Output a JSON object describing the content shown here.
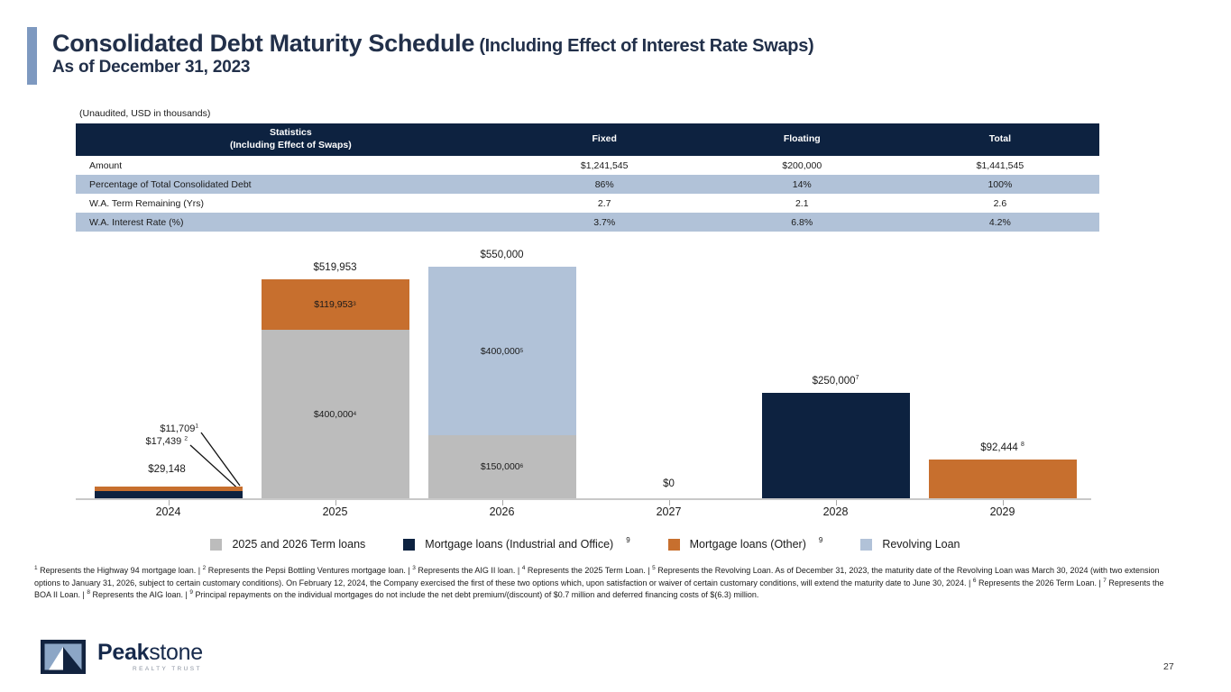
{
  "slide": {
    "title_main": "Consolidated Debt Maturity Schedule",
    "title_paren": " (Including Effect of Interest Rate Swaps)",
    "subtitle": "As of December 31, 2023",
    "unaudited_note": "(Unaudited, USD in thousands)",
    "page_number": "27"
  },
  "colors": {
    "accent_bar": "#7e99c0",
    "title_text": "#22304a",
    "table_header_bg": "#0d2240",
    "table_alt_row_bg": "#b1c2d8",
    "axis_line": "#c9c9c9",
    "series": {
      "term": "#bcbcbc",
      "mortgage_io": "#0d2240",
      "mortgage_other": "#c76f2e",
      "revolving": "#b1c2d8"
    }
  },
  "stats_table": {
    "header": {
      "col1_line1": "Statistics",
      "col1_line2": "(Including Effect of Swaps)",
      "cols": [
        "Fixed",
        "Floating",
        "Total"
      ]
    },
    "rows": [
      {
        "label": "Amount",
        "values": [
          "$1,241,545",
          "$200,000",
          "$1,441,545"
        ],
        "alt": false
      },
      {
        "label": "Percentage of Total Consolidated Debt",
        "values": [
          "86%",
          "14%",
          "100%"
        ],
        "alt": true
      },
      {
        "label": "W.A. Term Remaining (Yrs)",
        "values": [
          "2.7",
          "2.1",
          "2.6"
        ],
        "alt": false
      },
      {
        "label": "W.A. Interest Rate (%)",
        "values": [
          "3.7%",
          "6.8%",
          "4.2%"
        ],
        "alt": true
      }
    ]
  },
  "chart_data": {
    "type": "bar",
    "subtype": "stacked",
    "unit": "USD in thousands",
    "categories": [
      "2024",
      "2025",
      "2026",
      "2027",
      "2028",
      "2029"
    ],
    "ymax": 550000,
    "grid": false,
    "legend_position": "bottom",
    "series_names": {
      "term": "2025 and 2026 Term loans",
      "mortgage_io": "Mortgage loans (Industrial and Office)",
      "mortgage_other": "Mortgage loans (Other)",
      "revolving": "Revolving Loan"
    },
    "bars": [
      {
        "category": "2024",
        "total": 29148,
        "total_label_custom": true,
        "segments": [
          {
            "series": "mortgage_io",
            "value": 17439,
            "label": {
              "text": "$17,439 ",
              "sup": "2"
            },
            "label_mode": "leader"
          },
          {
            "series": "mortgage_other",
            "value": 11709,
            "label": {
              "text": "$11,709",
              "sup": "1"
            },
            "label_mode": "leader"
          }
        ]
      },
      {
        "category": "2025",
        "total": 519953,
        "total_label": {
          "text": "$519,953"
        },
        "segments": [
          {
            "series": "term",
            "value": 400000,
            "label": {
              "text": "$400,000",
              "sup": "4"
            },
            "label_mode": "inside"
          },
          {
            "series": "mortgage_other",
            "value": 119953,
            "label": {
              "text": "$119,953",
              "sup": "3"
            },
            "label_mode": "inside"
          }
        ]
      },
      {
        "category": "2026",
        "total": 550000,
        "total_label": {
          "text": "$550,000"
        },
        "segments": [
          {
            "series": "term",
            "value": 150000,
            "label": {
              "text": "$150,000",
              "sup": "6"
            },
            "label_mode": "inside"
          },
          {
            "series": "revolving",
            "value": 400000,
            "label": {
              "text": "$400,000",
              "sup": "5"
            },
            "label_mode": "inside"
          }
        ]
      },
      {
        "category": "2027",
        "total": 0,
        "total_label": {
          "text": "$0"
        },
        "segments": []
      },
      {
        "category": "2028",
        "total": 250000,
        "total_label": {
          "text": "$250,000",
          "sup": "7"
        },
        "segments": [
          {
            "series": "mortgage_io",
            "value": 250000
          }
        ]
      },
      {
        "category": "2029",
        "total": 92444,
        "total_label": {
          "text": "$92,444 ",
          "sup": "8"
        },
        "segments": [
          {
            "series": "mortgage_other",
            "value": 92444
          }
        ]
      }
    ],
    "leader_block": {
      "l1": {
        "text": "$11,709",
        "sup": "1"
      },
      "l2": {
        "text": "$17,439 ",
        "sup": "2"
      },
      "total": {
        "text": "$29,148"
      }
    }
  },
  "legend": {
    "items": [
      {
        "series": "term",
        "label": "2025 and 2026 Term loans"
      },
      {
        "series": "mortgage_io",
        "label": "Mortgage loans  (Industrial and Office)",
        "sup": "9"
      },
      {
        "series": "mortgage_other",
        "label": "Mortgage loans (Other)",
        "sup": "9"
      },
      {
        "series": "revolving",
        "label": "Revolving Loan"
      }
    ]
  },
  "footnotes": {
    "segments": [
      {
        "sup": "1",
        "text": " Represents the Highway 94 mortgage loan. | "
      },
      {
        "sup": "2",
        "text": " Represents the Pepsi Bottling Ventures mortgage loan. | "
      },
      {
        "sup": "3",
        "text": " Represents the AIG II loan. | "
      },
      {
        "sup": "4",
        "text": " Represents the 2025 Term Loan. | "
      },
      {
        "sup": "5",
        "text": " Represents the Revolving Loan.  As of December 31, 2023, the maturity date of the Revolving Loan was March 30, 2024 (with two extension options to January 31, 2026, subject to certain customary conditions). On February 12, 2024, the Company exercised the first of these two options which, upon satisfaction or waiver of certain customary conditions, will extend the maturity date to June 30, 2024. | "
      },
      {
        "sup": "6",
        "text": " Represents the 2026 Term Loan. | "
      },
      {
        "sup": "7",
        "text": " Represents the BOA II Loan. | "
      },
      {
        "sup": "8",
        "text": " Represents the AIG loan. | "
      },
      {
        "sup": "9",
        "text": " Principal repayments on the individual mortgages do not include the net debt premium/(discount) of $0.7 million and deferred financing costs of $(6.3) million."
      }
    ]
  },
  "logo": {
    "brand_bold": "Peak",
    "brand_light": "stone",
    "tagline": "REALTY TRUST"
  }
}
